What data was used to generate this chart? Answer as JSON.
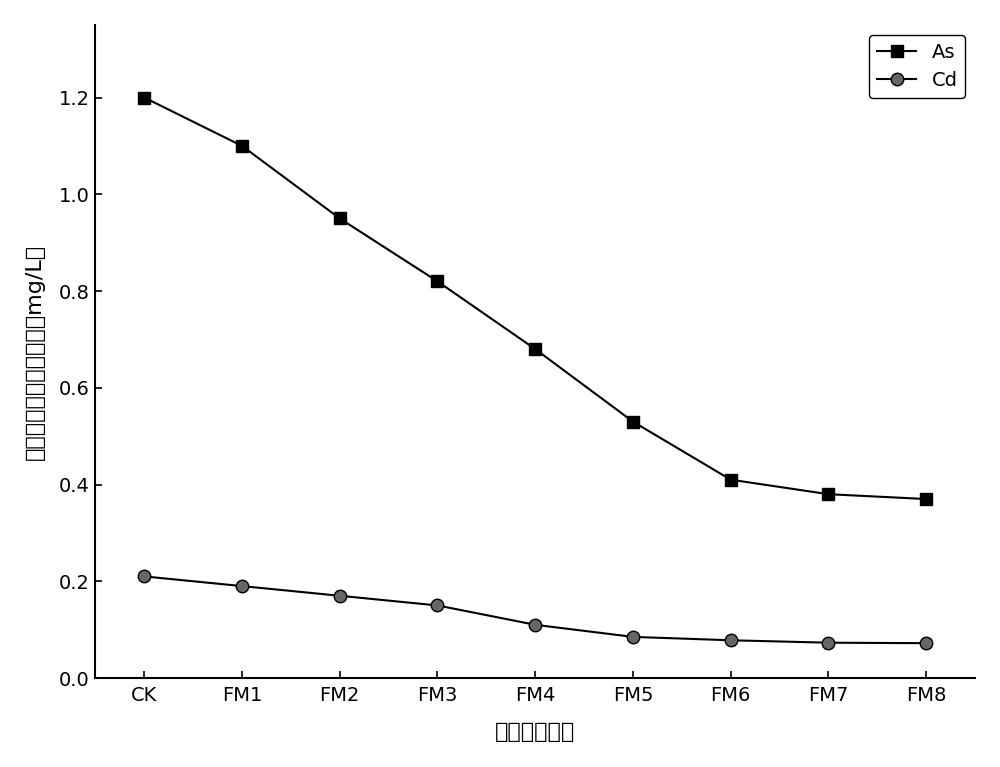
{
  "x_labels": [
    "CK",
    "FM1",
    "FM2",
    "FM3",
    "FM4",
    "FM5",
    "FM6",
    "FM7",
    "FM8"
  ],
  "As_values": [
    1.2,
    1.1,
    0.95,
    0.82,
    0.68,
    0.53,
    0.41,
    0.38,
    0.37
  ],
  "Cd_values": [
    0.21,
    0.19,
    0.17,
    0.15,
    0.11,
    0.085,
    0.078,
    0.073,
    0.072
  ],
  "As_label": "As",
  "Cd_label": "Cd",
  "xlabel": "药剂添加比例",
  "ylabel": "土壤水浸出重金属溶度（mg/L）",
  "ylim": [
    0.0,
    1.35
  ],
  "yticks": [
    0.0,
    0.2,
    0.4,
    0.6,
    0.8,
    1.0,
    1.2
  ],
  "line_color": "#000000",
  "marker_As": "s",
  "marker_Cd": "o",
  "marker_size_As": 8,
  "marker_size_Cd": 9,
  "linewidth": 1.5,
  "legend_loc": "upper right",
  "label_fontsize": 16,
  "tick_fontsize": 14,
  "legend_fontsize": 14,
  "background_color": "#ffffff",
  "cd_marker_fill": "#666666"
}
